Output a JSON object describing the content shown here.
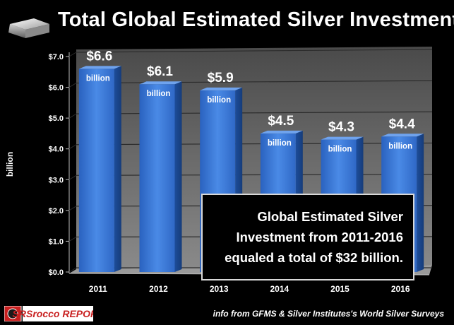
{
  "title": "Total Global Estimated Silver Investment",
  "footer": "info from GFMS & Silver Institutes's World Silver Surveys",
  "logo_text": "SRSrocco REPORT",
  "note": "Global Estimated Silver\nInvestment from 2011-2016\nequaled a total of $32 billion.",
  "colors": {
    "bar": "#3b7bd6",
    "bar_dark": "#1f4fa0",
    "background": "#000000",
    "wall": "#565656"
  },
  "chart_data": {
    "type": "bar",
    "title": "Total Global Estimated Silver Investment",
    "xlabel": "",
    "ylabel": "billion",
    "ylim": [
      0,
      7
    ],
    "yticks": [
      "$0.0",
      "$1.0",
      "$2.0",
      "$3.0",
      "$4.0",
      "$5.0",
      "$6.0",
      "$7.0"
    ],
    "categories": [
      "2011",
      "2012",
      "2013",
      "2014",
      "2015",
      "2016"
    ],
    "values": [
      6.6,
      6.1,
      5.9,
      4.5,
      4.3,
      4.4
    ],
    "value_labels": [
      "$6.6",
      "$6.1",
      "$5.9",
      "$4.5",
      "$4.3",
      "$4.4"
    ],
    "unit_label": "billion"
  }
}
